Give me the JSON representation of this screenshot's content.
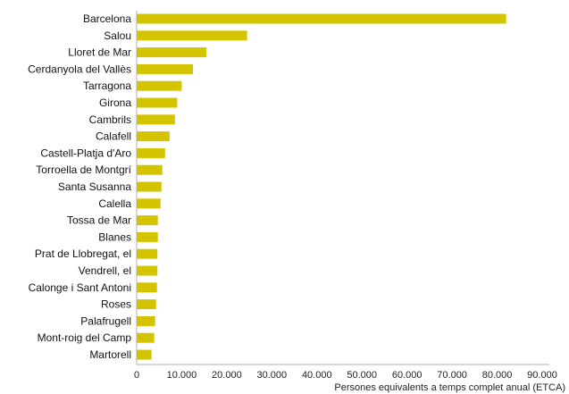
{
  "chart_data": {
    "type": "bar",
    "orientation": "horizontal",
    "categories": [
      "Barcelona",
      "Salou",
      "Lloret de Mar",
      "Cerdanyola del Vallès",
      "Tarragona",
      "Girona",
      "Cambrils",
      "Calafell",
      "Castell-Platja d'Aro",
      "Torroella de Montgrí",
      "Santa Susanna",
      "Calella",
      "Tossa de Mar",
      "Blanes",
      "Prat de Llobregat, el",
      "Vendrell, el",
      "Calonge i Sant Antoni",
      "Roses",
      "Palafrugell",
      "Mont-roig del Camp",
      "Martorell"
    ],
    "values": [
      82000,
      24500,
      15500,
      12500,
      10000,
      9000,
      8500,
      7300,
      6300,
      5700,
      5500,
      5300,
      4700,
      4700,
      4600,
      4600,
      4500,
      4300,
      4100,
      3900,
      3300
    ],
    "xlabel": "Persones equivalents a temps complet anual (ETCA)",
    "xlim": [
      0,
      90000
    ],
    "xticks": [
      0,
      10000,
      20000,
      30000,
      40000,
      50000,
      60000,
      70000,
      80000,
      90000
    ],
    "xtick_labels": [
      "0",
      "10.000",
      "20.000",
      "30.000",
      "40.000",
      "50.000",
      "60.000",
      "70.000",
      "80.000",
      "90.000"
    ],
    "bar_color": "#d4c400",
    "axis_color": "#b0b0b0",
    "grid": false,
    "legend": "none"
  }
}
